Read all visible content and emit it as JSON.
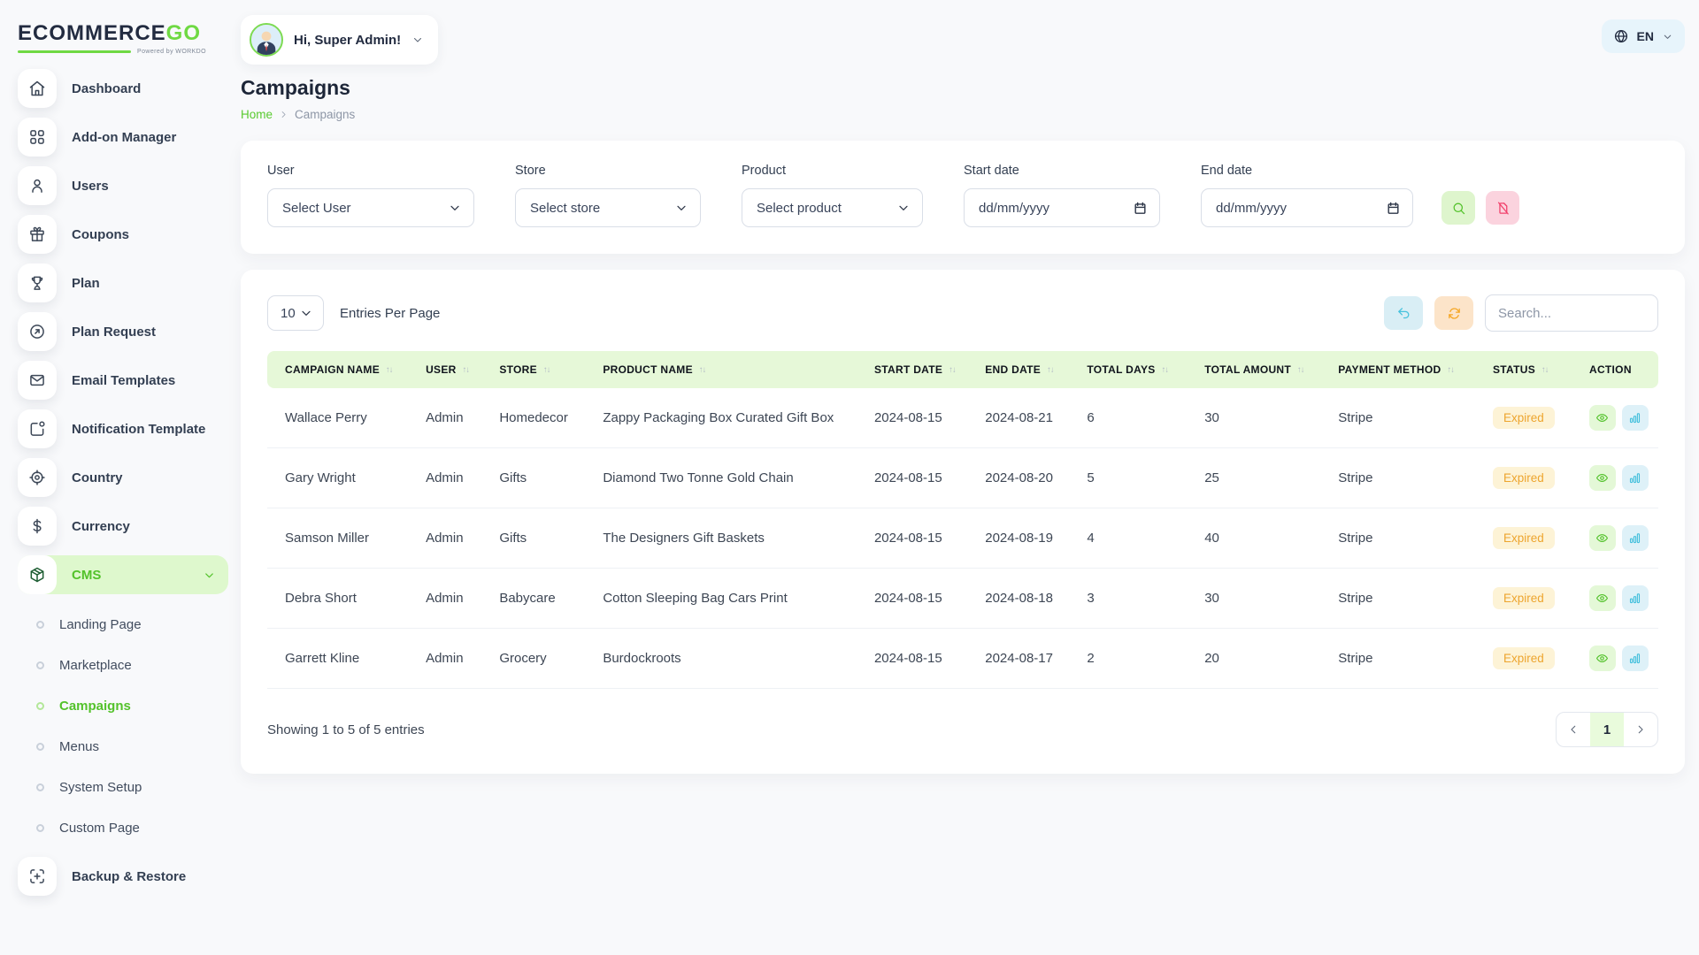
{
  "brand": {
    "name_primary": "ECOMMERCE",
    "name_accent": "GO",
    "powered_by": "Powered by WORKDO"
  },
  "header": {
    "greeting": "Hi, Super Admin!",
    "language": "EN"
  },
  "page": {
    "title": "Campaigns",
    "breadcrumb_home": "Home",
    "breadcrumb_current": "Campaigns"
  },
  "sidebar": {
    "items": [
      {
        "label": "Dashboard",
        "icon": "home-icon"
      },
      {
        "label": "Add-on Manager",
        "icon": "grid-icon"
      },
      {
        "label": "Users",
        "icon": "user-icon"
      },
      {
        "label": "Coupons",
        "icon": "gift-icon"
      },
      {
        "label": "Plan",
        "icon": "trophy-icon"
      },
      {
        "label": "Plan Request",
        "icon": "arrow-up-right-circle-icon"
      },
      {
        "label": "Email Templates",
        "icon": "mail-icon"
      },
      {
        "label": "Notification Template",
        "icon": "notification-icon"
      },
      {
        "label": "Country",
        "icon": "target-icon"
      },
      {
        "label": "Currency",
        "icon": "dollar-icon"
      },
      {
        "label": "CMS",
        "icon": "package-icon",
        "active": true,
        "children": [
          {
            "label": "Landing Page"
          },
          {
            "label": "Marketplace"
          },
          {
            "label": "Campaigns",
            "active": true
          },
          {
            "label": "Menus"
          },
          {
            "label": "System Setup"
          },
          {
            "label": "Custom Page"
          }
        ]
      },
      {
        "label": "Backup & Restore",
        "icon": "backup-icon"
      }
    ]
  },
  "filters": {
    "user": {
      "label": "User",
      "value": "Select User"
    },
    "store": {
      "label": "Store",
      "value": "Select store"
    },
    "product": {
      "label": "Product",
      "value": "Select product"
    },
    "start_date": {
      "label": "Start date",
      "placeholder": "dd/mm/yyyy"
    },
    "end_date": {
      "label": "End date",
      "placeholder": "dd/mm/yyyy"
    }
  },
  "table_controls": {
    "per_page": "10",
    "per_page_label": "Entries Per Page",
    "search_placeholder": "Search..."
  },
  "table": {
    "columns": [
      "CAMPAIGN NAME",
      "USER",
      "STORE",
      "PRODUCT NAME",
      "START DATE",
      "END DATE",
      "TOTAL DAYS",
      "TOTAL AMOUNT",
      "PAYMENT METHOD",
      "STATUS",
      "ACTION"
    ],
    "row_keys": [
      "campaign",
      "user",
      "store",
      "product",
      "start_date",
      "end_date",
      "total_days",
      "total_amount",
      "payment_method"
    ],
    "rows": [
      {
        "campaign": "Wallace Perry",
        "user": "Admin",
        "store": "Homedecor",
        "product": "Zappy Packaging Box Curated Gift Box",
        "start_date": "2024-08-15",
        "end_date": "2024-08-21",
        "total_days": "6",
        "total_amount": "30",
        "payment_method": "Stripe",
        "status": "Expired"
      },
      {
        "campaign": "Gary Wright",
        "user": "Admin",
        "store": "Gifts",
        "product": "Diamond Two Tonne Gold Chain",
        "start_date": "2024-08-15",
        "end_date": "2024-08-20",
        "total_days": "5",
        "total_amount": "25",
        "payment_method": "Stripe",
        "status": "Expired"
      },
      {
        "campaign": "Samson Miller",
        "user": "Admin",
        "store": "Gifts",
        "product": "The Designers Gift Baskets",
        "start_date": "2024-08-15",
        "end_date": "2024-08-19",
        "total_days": "4",
        "total_amount": "40",
        "payment_method": "Stripe",
        "status": "Expired"
      },
      {
        "campaign": "Debra Short",
        "user": "Admin",
        "store": "Babycare",
        "product": "Cotton Sleeping Bag Cars Print",
        "start_date": "2024-08-15",
        "end_date": "2024-08-18",
        "total_days": "3",
        "total_amount": "30",
        "payment_method": "Stripe",
        "status": "Expired"
      },
      {
        "campaign": "Garrett Kline",
        "user": "Admin",
        "store": "Grocery",
        "product": "Burdockroots",
        "start_date": "2024-08-15",
        "end_date": "2024-08-17",
        "total_days": "2",
        "total_amount": "20",
        "payment_method": "Stripe",
        "status": "Expired"
      }
    ]
  },
  "footer": {
    "showing": "Showing 1 to 5 of 5 entries",
    "current_page": "1"
  },
  "colors": {
    "accent_green": "#6fd943",
    "active_item_bg": "#def8cd",
    "table_header_bg": "#e6f8d8",
    "status_badge_bg": "#fdf3d6",
    "status_badge_text": "#eda52f"
  }
}
